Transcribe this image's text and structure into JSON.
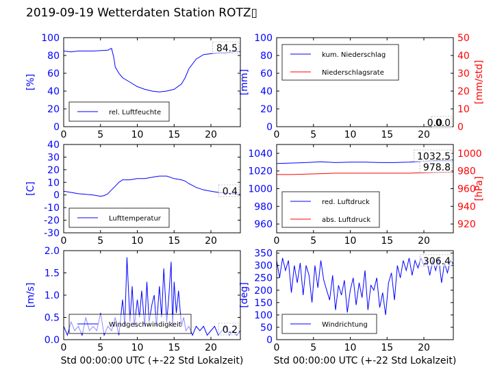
{
  "figure": {
    "title": "2019-09-19 Wetterdaten Station ROTZ▯"
  },
  "chart_data": [
    {
      "id": "humidity",
      "type": "line",
      "xlim": [
        0,
        24
      ],
      "xticks": [
        0,
        5,
        10,
        15,
        20
      ],
      "ylim": [
        0,
        100
      ],
      "yticks": [
        0,
        20,
        40,
        60,
        80,
        100
      ],
      "ylabel": "[%]",
      "ylabel_color": "#0000ff",
      "tick_color": "#0000ff",
      "grid": false,
      "legend_placement": "lower-left",
      "last_value": "84.5",
      "series": [
        {
          "name": "rel. Luftfeuchte",
          "color": "#0000ff",
          "x": [
            0,
            1,
            2,
            3,
            4,
            5,
            6,
            6.5,
            6.8,
            7,
            7.5,
            8,
            9,
            10,
            11,
            12,
            13,
            14,
            15,
            16,
            16.5,
            17,
            18,
            19,
            20,
            21,
            22,
            23,
            24
          ],
          "y": [
            85,
            84,
            85,
            85,
            85,
            85.5,
            86,
            88,
            78,
            67,
            60,
            55,
            50,
            45,
            42,
            40,
            39,
            40,
            42,
            48,
            55,
            65,
            76,
            81,
            82,
            83,
            83,
            84,
            84.5
          ]
        }
      ]
    },
    {
      "id": "precip",
      "type": "line",
      "xlim": [
        0,
        24
      ],
      "xticks": [
        0,
        5,
        10,
        15,
        20
      ],
      "ylim": [
        0,
        100
      ],
      "yticks": [
        0,
        20,
        40,
        60,
        80,
        100
      ],
      "ylabel": "[mm]",
      "ylabel_color": "#0000ff",
      "tick_color": "#0000ff",
      "y2lim": [
        0,
        50
      ],
      "y2ticks": [
        0,
        10,
        20,
        30,
        40,
        50
      ],
      "y2label": "[mm/std]",
      "y2label_color": "#ff0000",
      "grid": false,
      "legend_placement": "top-left",
      "last_value": "0.0",
      "last_value2": "0.0",
      "series": [
        {
          "name": "kum. Niederschlag",
          "color": "#0000ff",
          "axis": "left",
          "x": [
            0,
            24
          ],
          "y": [
            0,
            0
          ]
        },
        {
          "name": "Niederschlagsrate",
          "color": "#ff0000",
          "axis": "right",
          "x": [
            0,
            24
          ],
          "y": [
            0,
            0
          ]
        }
      ]
    },
    {
      "id": "temperature",
      "type": "line",
      "xlim": [
        0,
        24
      ],
      "xticks": [
        0,
        5,
        10,
        15,
        20
      ],
      "ylim": [
        -30,
        40
      ],
      "yticks": [
        -30,
        -20,
        -10,
        0,
        10,
        20,
        30,
        40
      ],
      "ylabel": "[C]",
      "ylabel_color": "#0000ff",
      "tick_color": "#0000ff",
      "grid": false,
      "legend_placement": "lower-left",
      "last_value": "0.4",
      "series": [
        {
          "name": "Lufttemperatur",
          "color": "#0000ff",
          "x": [
            0,
            1,
            2,
            3,
            4,
            5,
            5.5,
            6,
            6.5,
            7,
            7.5,
            8,
            9,
            10,
            11,
            12,
            13,
            14,
            15,
            16,
            16.5,
            17,
            18,
            19,
            20,
            21,
            22,
            23,
            24
          ],
          "y": [
            3,
            2,
            1,
            0.5,
            0,
            -1,
            -0.5,
            1,
            4,
            7,
            10,
            12,
            12,
            13,
            13,
            14,
            15,
            15,
            13,
            12,
            11,
            9,
            6,
            4,
            3,
            2,
            1.5,
            1,
            0.4
          ]
        }
      ]
    },
    {
      "id": "pressure",
      "type": "line",
      "xlim": [
        0,
        24
      ],
      "xticks": [
        0,
        5,
        10,
        15,
        20
      ],
      "ylim": [
        950,
        1050
      ],
      "yticks": [
        960,
        980,
        1000,
        1020,
        1040
      ],
      "ylabel": "",
      "ylabel_color": "#0000ff",
      "tick_color": "#0000ff",
      "y2lim": [
        910,
        1010
      ],
      "y2ticks": [
        920,
        940,
        960,
        980,
        1000
      ],
      "y2label": "[hPa]",
      "y2label_color": "#ff0000",
      "grid": false,
      "legend_placement": "lower-left",
      "last_value": "1032.5",
      "last_value2": "978.8",
      "series": [
        {
          "name": "red. Luftdruck",
          "color": "#0000ff",
          "axis": "left",
          "x": [
            0,
            2,
            4,
            6,
            8,
            10,
            12,
            14,
            16,
            18,
            20,
            22,
            24
          ],
          "y": [
            1028.5,
            1029,
            1029.5,
            1030.5,
            1029.5,
            1030,
            1030,
            1029.5,
            1029.5,
            1030,
            1031,
            1032,
            1032.5
          ]
        },
        {
          "name": "abs. Luftdruck",
          "color": "#ff0000",
          "axis": "right",
          "x": [
            0,
            2,
            4,
            6,
            8,
            10,
            12,
            14,
            16,
            18,
            20,
            22,
            24
          ],
          "y": [
            976,
            976,
            976.5,
            977,
            977.5,
            977.5,
            977.5,
            977.5,
            977.5,
            977.5,
            978,
            978.5,
            978.8
          ]
        }
      ]
    },
    {
      "id": "wind_speed",
      "type": "line",
      "xlim": [
        0,
        24
      ],
      "xticks": [
        0,
        5,
        10,
        15,
        20
      ],
      "ylim": [
        0,
        2.0
      ],
      "yticks": [
        0.0,
        0.5,
        1.0,
        1.5,
        2.0
      ],
      "ylabel": "[m/s]",
      "ylabel_color": "#0000ff",
      "tick_color": "#0000ff",
      "xlabel": "Std 00:00:00 UTC (+-22 Std Lokalzeit)",
      "grid": false,
      "legend_placement": "lower-left",
      "last_value": "0.2",
      "series": [
        {
          "name": "Windgeschwindigkeit",
          "color": "#0000ff",
          "x": [
            0,
            0.5,
            1,
            1.5,
            2,
            2.5,
            3,
            3.5,
            4,
            4.5,
            5,
            5.5,
            6,
            6.5,
            7,
            7.5,
            8,
            8.3,
            8.6,
            9,
            9.3,
            9.6,
            10,
            10.3,
            10.6,
            11,
            11.3,
            11.6,
            12,
            12.3,
            12.6,
            13,
            13.3,
            13.6,
            14,
            14.3,
            14.6,
            14.8,
            15,
            15.3,
            15.6,
            16,
            16.3,
            16.6,
            17,
            17.5,
            18,
            18.5,
            19,
            19.5,
            20,
            20.5,
            21,
            21.5,
            22,
            22.5,
            23,
            23.5,
            24
          ],
          "y": [
            0.3,
            0.1,
            0.4,
            0.2,
            0.3,
            0.1,
            0.5,
            0.2,
            0.3,
            0.2,
            0.6,
            0.1,
            0.3,
            0.2,
            0.5,
            0.1,
            0.9,
            0.3,
            1.85,
            0.4,
            1.2,
            0.3,
            0.9,
            0.5,
            1.1,
            0.3,
            1.3,
            0.4,
            0.8,
            1.0,
            0.3,
            1.2,
            0.5,
            1.6,
            0.4,
            1.0,
            1.75,
            0.3,
            1.3,
            0.6,
            1.1,
            0.3,
            0.5,
            0.2,
            0.3,
            0.1,
            0.3,
            0.2,
            0.3,
            0.1,
            0.2,
            0.3,
            0.1,
            0.2,
            0.3,
            0.1,
            0.2,
            0.1,
            0.2
          ]
        }
      ]
    },
    {
      "id": "wind_direction",
      "type": "line",
      "xlim": [
        0,
        24
      ],
      "xticks": [
        0,
        5,
        10,
        15,
        20
      ],
      "ylim": [
        0,
        360
      ],
      "yticks": [
        0,
        50,
        100,
        150,
        200,
        250,
        300,
        350
      ],
      "ylabel": "[deg]",
      "ylabel_color": "#0000ff",
      "tick_color": "#0000ff",
      "xlabel": "Std 00:00:00 UTC (+-22 Std Lokalzeit)",
      "grid": false,
      "legend_placement": "lower-left",
      "last_value": "306.4",
      "series": [
        {
          "name": "Windrichtung",
          "color": "#0000ff",
          "x": [
            0,
            0.4,
            0.8,
            1.2,
            1.6,
            2,
            2.4,
            2.8,
            3.2,
            3.6,
            4,
            4.4,
            4.8,
            5.2,
            5.6,
            6,
            6.4,
            6.8,
            7.2,
            7.6,
            8,
            8.4,
            8.8,
            9.2,
            9.6,
            10,
            10.4,
            10.8,
            11.2,
            11.6,
            12,
            12.4,
            12.8,
            13.2,
            13.6,
            14,
            14.4,
            14.8,
            15.2,
            15.6,
            16,
            16.4,
            16.8,
            17.2,
            17.6,
            18,
            18.4,
            18.8,
            19.2,
            19.6,
            20,
            20.4,
            20.8,
            21.2,
            21.6,
            22,
            22.4,
            22.8,
            23.2,
            23.6,
            24
          ],
          "y": [
            320,
            250,
            330,
            280,
            320,
            190,
            300,
            230,
            310,
            180,
            300,
            260,
            150,
            300,
            210,
            320,
            240,
            200,
            160,
            260,
            120,
            220,
            180,
            240,
            110,
            200,
            250,
            140,
            230,
            170,
            280,
            120,
            220,
            200,
            250,
            130,
            190,
            100,
            230,
            270,
            160,
            300,
            250,
            320,
            280,
            330,
            260,
            320,
            290,
            330,
            300,
            320,
            260,
            320,
            280,
            330,
            230,
            310,
            270,
            320,
            306
          ]
        }
      ]
    }
  ]
}
